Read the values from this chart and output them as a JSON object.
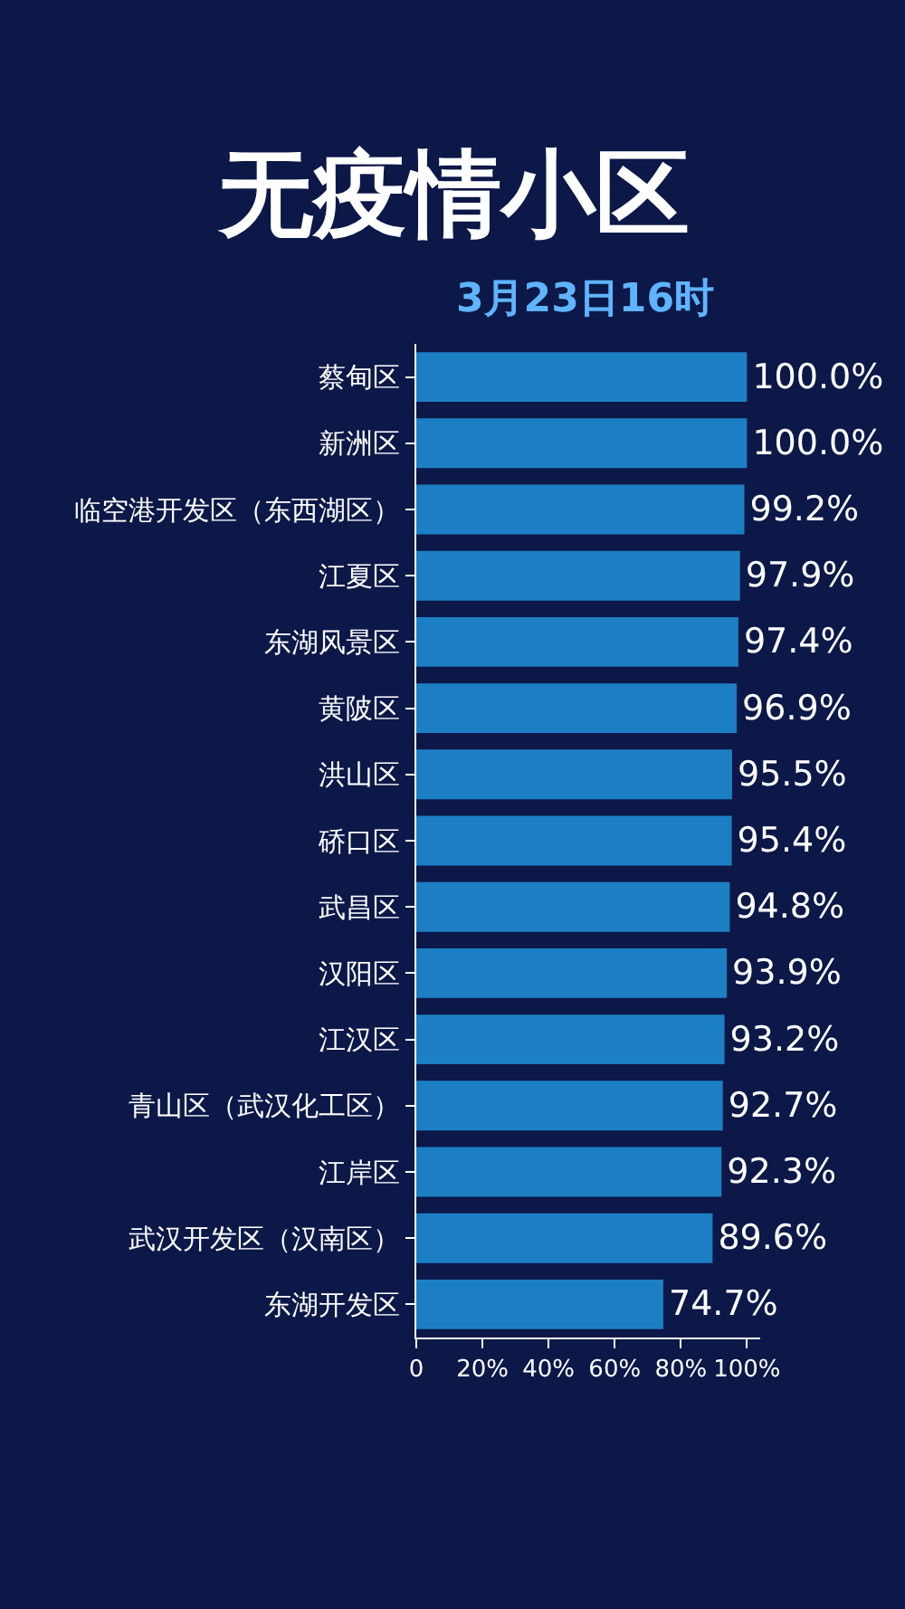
{
  "chart_data": {
    "type": "bar",
    "orientation": "horizontal",
    "title": "无疫情小区",
    "subtitle": "3月23日16时",
    "categories": [
      "蔡甸区",
      "新洲区",
      "临空港开发区（东西湖区）",
      "江夏区",
      "东湖风景区",
      "黄陂区",
      "洪山区",
      "硚口区",
      "武昌区",
      "汉阳区",
      "江汉区",
      "青山区（武汉化工区）",
      "江岸区",
      "武汉开发区（汉南区）",
      "东湖开发区"
    ],
    "values": [
      100.0,
      100.0,
      99.2,
      97.9,
      97.4,
      96.9,
      95.5,
      95.4,
      94.8,
      93.9,
      93.2,
      92.7,
      92.3,
      89.6,
      74.7
    ],
    "value_labels": [
      "100.0%",
      "100.0%",
      "99.2%",
      "97.9%",
      "97.4%",
      "96.9%",
      "95.5%",
      "95.4%",
      "94.8%",
      "93.9%",
      "93.2%",
      "92.7%",
      "92.3%",
      "89.6%",
      "74.7%"
    ],
    "color": "#1c7fc4",
    "xlim": [
      0,
      104
    ],
    "xticks": [
      {
        "value": 0,
        "label": "0"
      },
      {
        "value": 20,
        "label": "20%"
      },
      {
        "value": 40,
        "label": "40%"
      },
      {
        "value": 60,
        "label": "60%"
      },
      {
        "value": 80,
        "label": "80%"
      },
      {
        "value": 100,
        "label": "100%"
      }
    ],
    "grid": false,
    "legend": false
  }
}
